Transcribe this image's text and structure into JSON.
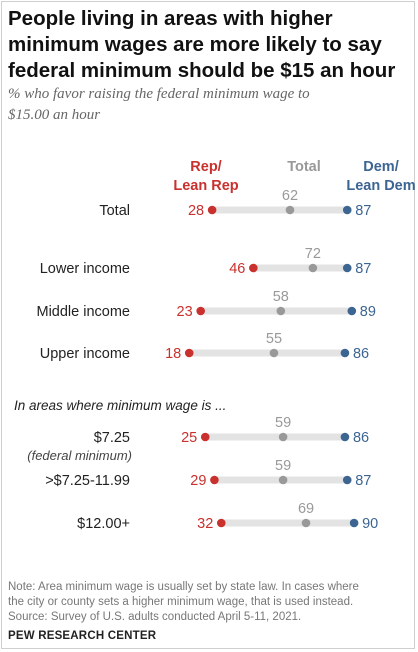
{
  "title_line1": "People living in areas with higher",
  "title_line2": "minimum wages are more likely to say",
  "title_line3": "federal minimum should be $15 an hour",
  "subtitle_line1": "% who favor raising the federal minimum wage to",
  "subtitle_line2": "$15.00 an hour",
  "colors": {
    "rep": "#c8312d",
    "total": "#999999",
    "dem": "#3c6592",
    "track": "#e3e3e3"
  },
  "chart_data": {
    "type": "dot",
    "xlim": [
      0,
      100
    ],
    "legend": [
      {
        "key": "rep",
        "lines": [
          "Rep/",
          "Lean Rep"
        ]
      },
      {
        "key": "total",
        "lines": [
          "Total"
        ]
      },
      {
        "key": "dem",
        "lines": [
          "Dem/",
          "Lean Dem"
        ]
      }
    ],
    "section_label": "In areas where minimum wage is ...",
    "rows": [
      {
        "label": "Total",
        "sublabel": "",
        "rep": 28,
        "total": 62,
        "dem": 87
      },
      {
        "label": "Lower income",
        "sublabel": "",
        "rep": 46,
        "total": 72,
        "dem": 87
      },
      {
        "label": "Middle income",
        "sublabel": "",
        "rep": 23,
        "total": 58,
        "dem": 89
      },
      {
        "label": "Upper income",
        "sublabel": "",
        "rep": 18,
        "total": 55,
        "dem": 86
      },
      {
        "label": "$7.25",
        "sublabel": "(federal minimum)",
        "rep": 25,
        "total": 59,
        "dem": 86
      },
      {
        "label": ">$7.25-11.99",
        "sublabel": "",
        "rep": 29,
        "total": 59,
        "dem": 87
      },
      {
        "label": "$12.00+",
        "sublabel": "",
        "rep": 32,
        "total": 69,
        "dem": 90
      }
    ]
  },
  "note_line1": "Note: Area minimum wage is usually set by state law. In cases where",
  "note_line2": "the city or county sets a higher minimum wage, that is used instead.",
  "source_line": "Source: Survey of U.S. adults conducted April 5-11, 2021.",
  "org": "PEW RESEARCH CENTER"
}
